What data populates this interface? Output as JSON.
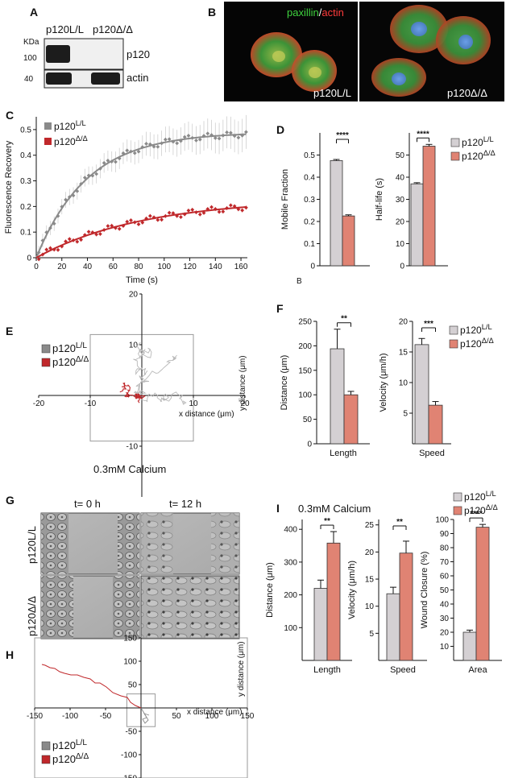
{
  "panels": {
    "A": {
      "letter": "A",
      "kda": "KDa",
      "lane1": "p120L/L",
      "lane2": "p120Δ/Δ",
      "marker_top": "100",
      "marker_bottom": "40",
      "band_top": "p120",
      "band_bottom": "actin"
    },
    "B": {
      "letter": "B",
      "stain_green": "paxillin",
      "stain_slash": "/",
      "stain_red": "actin",
      "left_label": "p120L/L",
      "right_label": "p120Δ/Δ"
    },
    "C": {
      "letter": "C"
    },
    "D": {
      "letter": "D",
      "stray": "B"
    },
    "E": {
      "letter": "E",
      "caption": "0.3mM Calcium"
    },
    "F": {
      "letter": "F"
    },
    "G": {
      "letter": "G",
      "col1": "t= 0 h",
      "col2": "t= 12 h",
      "row1": "p120L/L",
      "row2": "p120Δ/Δ"
    },
    "H": {
      "letter": "H"
    },
    "I": {
      "letter": "I",
      "title": "0.3mM Calcium"
    }
  },
  "colors": {
    "ctrl": "#d4d0d3",
    "ko": "#e08373",
    "ctrl_line": "#8a8a8a",
    "ko_line": "#c0282b",
    "track_ctrl": "#b8b8b8"
  },
  "chart_data": [
    {
      "id": "C",
      "type": "line",
      "xlabel": "Time (s)",
      "ylabel": "Fluorescence Recovery",
      "xlim": [
        0,
        165
      ],
      "ylim": [
        0,
        0.55
      ],
      "xticks": [
        0,
        20,
        40,
        60,
        80,
        100,
        120,
        140,
        160
      ],
      "yticks": [
        0,
        0.1,
        0.2,
        0.3,
        0.4,
        0.5
      ],
      "series": [
        {
          "name": "p120L/L",
          "plateau": 0.49,
          "rate": 0.025
        },
        {
          "name": "p120Δ/Δ",
          "plateau": 0.23,
          "rate": 0.012
        }
      ]
    },
    {
      "id": "D1",
      "type": "bar",
      "categories": [
        "p120L/L",
        "p120Δ/Δ"
      ],
      "values": [
        0.475,
        0.225
      ],
      "errors": [
        0.005,
        0.005
      ],
      "ylabel": "Mobile Fraction",
      "ylim": [
        0,
        0.6
      ],
      "yticks": [
        0,
        0.1,
        0.2,
        0.3,
        0.4,
        0.5
      ],
      "sig": "****"
    },
    {
      "id": "D2",
      "type": "bar",
      "categories": [
        "p120L/L",
        "p120Δ/Δ"
      ],
      "values": [
        37,
        54
      ],
      "errors": [
        0.5,
        0.8
      ],
      "ylabel": "Half-life (s)",
      "ylim": [
        0,
        60
      ],
      "yticks": [
        0,
        10,
        20,
        30,
        40,
        50
      ],
      "sig": "****",
      "legend": [
        "p120L/L",
        "p120Δ/Δ"
      ]
    },
    {
      "id": "E",
      "type": "scatter",
      "xlabel": "x distance (μm)",
      "ylabel": "y distance (μm)",
      "xlim": [
        -20,
        20
      ],
      "ylim": [
        -20,
        20
      ],
      "xticks": [
        -20,
        -10,
        10,
        20
      ],
      "yticks": [
        -10,
        10,
        20
      ],
      "legend": [
        "p120L/L",
        "p120Δ/Δ"
      ]
    },
    {
      "id": "F1",
      "type": "bar",
      "categories": [
        "p120L/L",
        "p120Δ/Δ"
      ],
      "values": [
        194,
        100
      ],
      "errors": [
        40,
        7
      ],
      "ylabel": "Distance (μm)",
      "xlabel": "Length",
      "ylim": [
        0,
        250
      ],
      "yticks": [
        0,
        50,
        100,
        150,
        200,
        250
      ],
      "sig": "**"
    },
    {
      "id": "F2",
      "type": "bar",
      "categories": [
        "p120L/L",
        "p120Δ/Δ"
      ],
      "values": [
        16.2,
        6.3
      ],
      "errors": [
        1,
        0.6
      ],
      "ylabel": "Velocity (μm/h)",
      "xlabel": "Speed",
      "ylim": [
        0,
        20
      ],
      "yticks": [
        5,
        10,
        15,
        20
      ],
      "sig": "***",
      "legend": [
        "p120L/L",
        "p120Δ/Δ"
      ]
    },
    {
      "id": "H",
      "type": "scatter",
      "xlabel": "x distance (μm)",
      "ylabel": "y distance (μm)",
      "xlim": [
        -150,
        150
      ],
      "ylim": [
        -150,
        150
      ],
      "xticks": [
        -150,
        -100,
        -50,
        50,
        100,
        150
      ],
      "yticks": [
        -150,
        -100,
        -50,
        50,
        100,
        150
      ],
      "legend": [
        "p120L/L",
        "p120Δ/Δ"
      ]
    },
    {
      "id": "I1",
      "type": "bar",
      "categories": [
        "p120L/L",
        "p120Δ/Δ"
      ],
      "values": [
        220,
        358
      ],
      "errors": [
        25,
        35
      ],
      "ylabel": "Distance (μm)",
      "xlabel": "Length",
      "ylim": [
        0,
        430
      ],
      "yticks": [
        100,
        200,
        300,
        400
      ],
      "sig": "**"
    },
    {
      "id": "I2",
      "type": "bar",
      "categories": [
        "p120L/L",
        "p120Δ/Δ"
      ],
      "values": [
        12.3,
        19.8
      ],
      "errors": [
        1.2,
        2.2
      ],
      "ylabel": "Velocity (μm/h)",
      "xlabel": "Speed",
      "ylim": [
        0,
        26
      ],
      "yticks": [
        5,
        10,
        15,
        20,
        25
      ],
      "sig": "**"
    },
    {
      "id": "I3",
      "type": "bar",
      "categories": [
        "p120L/L",
        "p120Δ/Δ"
      ],
      "values": [
        20,
        94.5
      ],
      "errors": [
        1.5,
        2
      ],
      "ylabel": "Wound Closure (%)",
      "xlabel": "Area",
      "ylim": [
        0,
        100
      ],
      "yticks": [
        10,
        20,
        30,
        40,
        50,
        60,
        70,
        80,
        90,
        100
      ],
      "sig": "****",
      "legend": [
        "p120L/L",
        "p120Δ/Δ"
      ]
    }
  ]
}
